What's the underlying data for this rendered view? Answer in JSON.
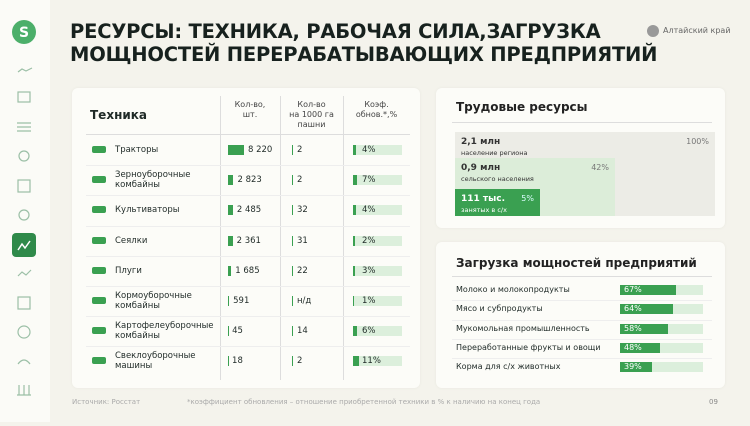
{
  "header": {
    "title": "РЕСУРСЫ: ТЕХНИКА, РАБОЧАЯ СИЛА,ЗАГРУЗКА\nМОЩНОСТЕЙ ПЕРЕРАБАТЫВАЮЩИХ ПРЕДПРИЯТИЙ",
    "region": "Алтайский край"
  },
  "table": {
    "columns": [
      "Техника",
      "Кол-во,\nшт.",
      "Кол-во\nна 1000 га\nпашни",
      "Коэф.\nобнов.*,%"
    ],
    "rows": [
      {
        "name": "Тракторы",
        "count": {
          "value": 8220,
          "label": "8 220"
        },
        "per1000": "2",
        "coef": {
          "value": 4,
          "label": "4%"
        }
      },
      {
        "name": "Зерноуборочные\nкомбайны",
        "count": {
          "value": 2823,
          "label": "2 823"
        },
        "per1000": "2",
        "coef": {
          "value": 7,
          "label": "7%"
        }
      },
      {
        "name": "Культиваторы",
        "count": {
          "value": 2485,
          "label": "2 485"
        },
        "per1000": "32",
        "coef": {
          "value": 4,
          "label": "4%"
        }
      },
      {
        "name": "Сеялки",
        "count": {
          "value": 2361,
          "label": "2 361"
        },
        "per1000": "31",
        "coef": {
          "value": 2,
          "label": "2%"
        }
      },
      {
        "name": "Плуги",
        "count": {
          "value": 1685,
          "label": "1 685"
        },
        "per1000": "22",
        "coef": {
          "value": 3,
          "label": "3%"
        }
      },
      {
        "name": "Кормоуборочные\nкомбайны",
        "count": {
          "value": 591,
          "label": "591"
        },
        "per1000": "н/д",
        "coef": {
          "value": 1,
          "label": "1%"
        }
      },
      {
        "name": "Картофелеуборочные\nкомбайны",
        "count": {
          "value": 45,
          "label": "45"
        },
        "per1000": "14",
        "coef": {
          "value": 6,
          "label": "6%"
        }
      },
      {
        "name": "Свеклоуборочные\nмашины",
        "count": {
          "value": 18,
          "label": "18"
        },
        "per1000": "2",
        "coef": {
          "value": 11,
          "label": "11%"
        }
      }
    ]
  },
  "labor": {
    "title": "Трудовые ресурсы",
    "items": [
      {
        "value": "2,1 млн",
        "label": "население региона",
        "share": "100%"
      },
      {
        "value": "0,9 млн",
        "label": "сельского населения",
        "share": "42%"
      },
      {
        "value": "111 тыс.",
        "label": "занятых в с/х",
        "share": "5%"
      }
    ]
  },
  "capacity": {
    "title": "Загрузка мощностей предприятий",
    "items": [
      {
        "name": "Молоко и молокопродукты",
        "value": 67,
        "label": "67%"
      },
      {
        "name": "Мясо и субпродукты",
        "value": 64,
        "label": "64%"
      },
      {
        "name": "Мукомольная промышленность",
        "value": 58,
        "label": "58%"
      },
      {
        "name": "Переработанные фрукты и овощи",
        "value": 48,
        "label": "48%"
      },
      {
        "name": "Корма для с/х животных",
        "value": 39,
        "label": "39%"
      }
    ]
  },
  "footer": {
    "source": "Источник: Росстат",
    "note": "*коэффициент обновления – отношение приобретенной техники в % к наличию на конец года",
    "page": "09"
  }
}
